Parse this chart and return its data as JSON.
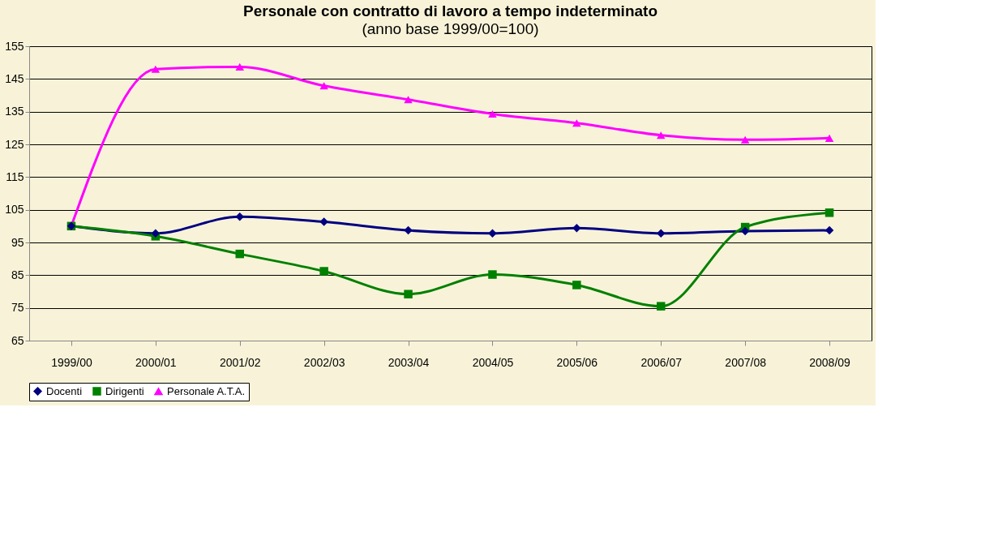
{
  "chart_data": {
    "type": "line",
    "title": "Personale con contratto di lavoro a tempo indeterminato",
    "subtitle": "(anno base 1999/00=100)",
    "categories": [
      "1999/00",
      "2000/01",
      "2001/02",
      "2002/03",
      "2003/04",
      "2004/05",
      "2005/06",
      "2006/07",
      "2007/08",
      "2008/09"
    ],
    "series": [
      {
        "name": "Docenti",
        "color": "#000080",
        "marker": "diamond",
        "values": [
          100,
          97.8,
          102.9,
          101.3,
          98.7,
          97.8,
          99.4,
          97.8,
          98.5,
          98.7
        ]
      },
      {
        "name": "Dirigenti",
        "color": "#008000",
        "marker": "square",
        "values": [
          100,
          96.9,
          91.5,
          86.2,
          79.2,
          85.2,
          82,
          75.5,
          99.7,
          104.1
        ]
      },
      {
        "name": "Personale A.T.A.",
        "color": "#ff00ff",
        "marker": "triangle",
        "values": [
          100,
          148,
          148.7,
          142.9,
          138.7,
          134.3,
          131.5,
          127.8,
          126.4,
          126.9
        ]
      }
    ],
    "ylim": [
      65,
      155
    ],
    "yticks": [
      65,
      75,
      85,
      95,
      105,
      115,
      125,
      135,
      145,
      155
    ],
    "grid": "y",
    "legend": "bottom",
    "line_style": "solid"
  }
}
